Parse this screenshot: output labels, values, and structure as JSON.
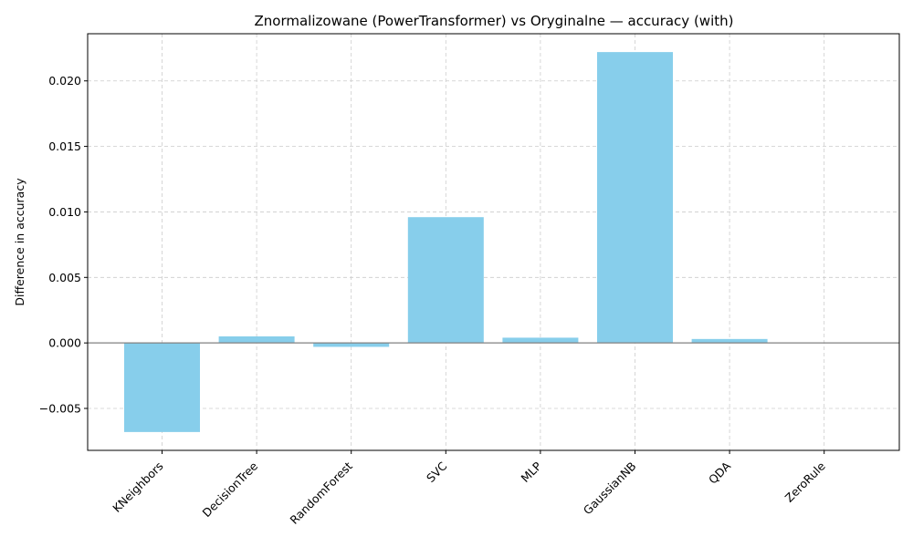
{
  "chart_data": {
    "type": "bar",
    "title": "Znormalizowane (PowerTransformer) vs Oryginalne — accuracy (with)",
    "xlabel": "",
    "ylabel": "Difference in accuracy",
    "categories": [
      "KNeighbors",
      "DecisionTree",
      "RandomForest",
      "SVC",
      "MLP",
      "GaussianNB",
      "QDA",
      "ZeroRule"
    ],
    "values": [
      -0.0068,
      0.0005,
      -0.0003,
      0.0096,
      0.0004,
      0.0222,
      0.0003,
      0.0
    ],
    "ylim": [
      -0.0082,
      0.0236
    ],
    "yticks": [
      -0.005,
      0.0,
      0.005,
      0.01,
      0.015,
      0.02
    ],
    "ytick_labels": [
      "−0.005",
      "0.000",
      "0.005",
      "0.010",
      "0.015",
      "0.020"
    ],
    "grid": true,
    "bar_color": "#87ceeb",
    "zero_line_color": "#808080",
    "grid_color": "#cccccc"
  }
}
